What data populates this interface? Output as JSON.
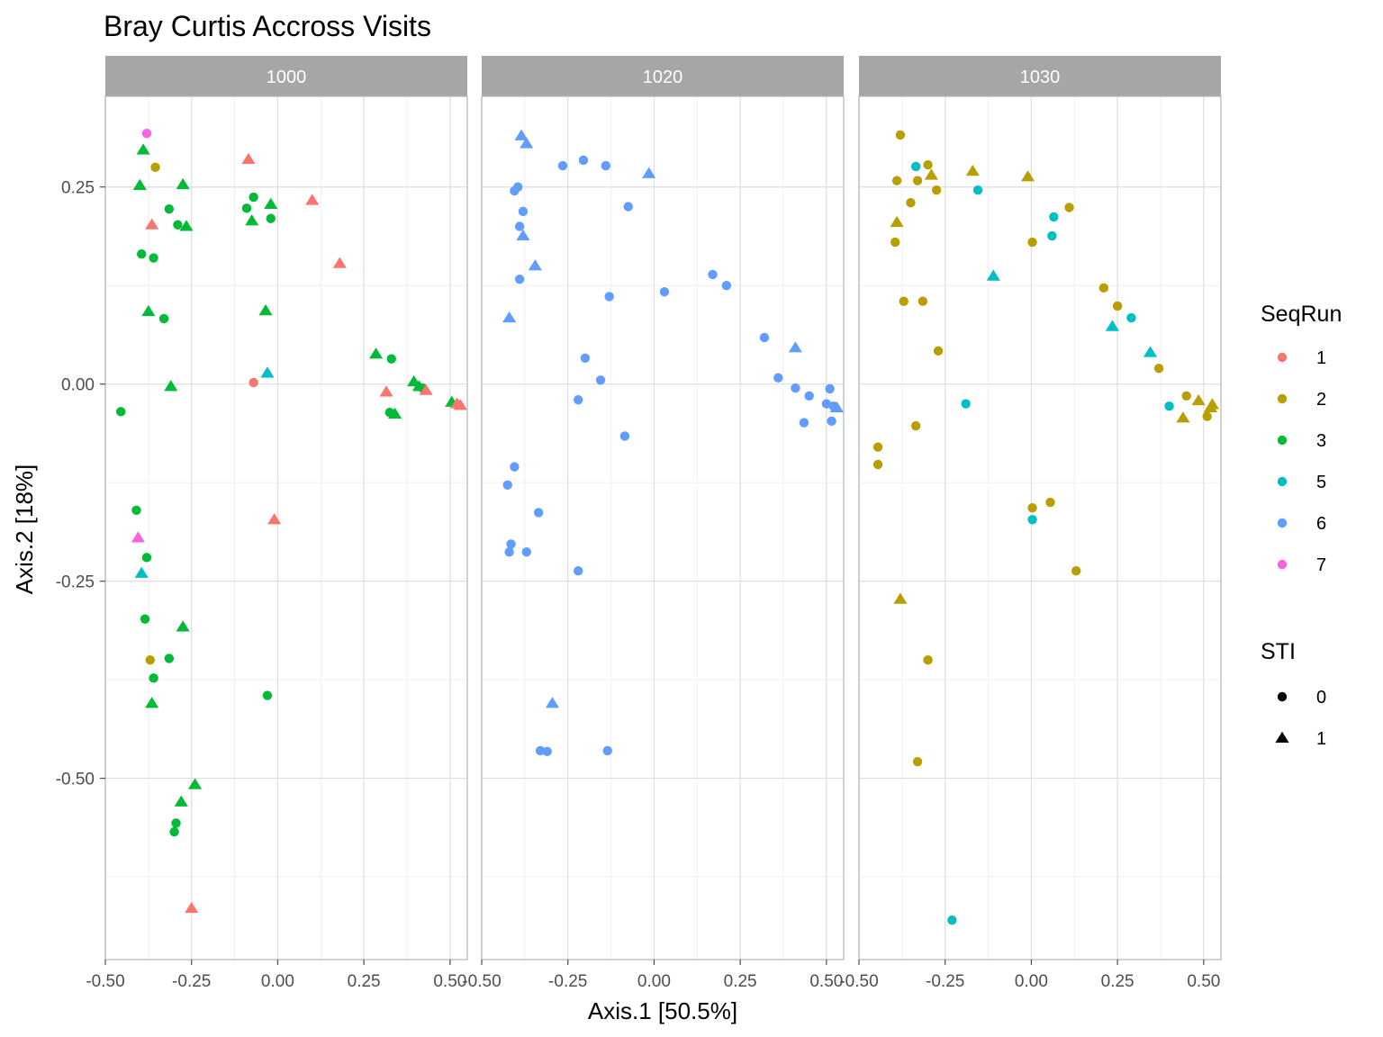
{
  "chart_data": {
    "type": "scatter",
    "title": "Bray Curtis Accross Visits",
    "xlabel": "Axis.1   [50.5%]",
    "ylabel": "Axis.2   [18%]",
    "xlim": [
      -0.5,
      0.55
    ],
    "ylim": [
      -0.73,
      0.365
    ],
    "xticks": [
      -0.5,
      -0.25,
      0.0,
      0.25,
      0.5
    ],
    "xtick_labels": [
      "-0.50",
      "-0.25",
      "0.00",
      "0.25",
      "0.50"
    ],
    "yticks": [
      0.25,
      0.0,
      -0.25,
      -0.5
    ],
    "ytick_labels": [
      "0.25",
      "0.00",
      "-0.25",
      "-0.50"
    ],
    "grid": true,
    "facets": [
      "1000",
      "1020",
      "1030"
    ],
    "legend": {
      "position": "right",
      "color": {
        "title": "SeqRun",
        "entries": [
          {
            "label": "1",
            "color": "#F8766D"
          },
          {
            "label": "2",
            "color": "#B79F00"
          },
          {
            "label": "3",
            "color": "#00BA38"
          },
          {
            "label": "5",
            "color": "#00BFC4"
          },
          {
            "label": "6",
            "color": "#619CFF"
          },
          {
            "label": "7",
            "color": "#F564E3"
          }
        ]
      },
      "shape": {
        "title": "STI",
        "entries": [
          {
            "label": "0",
            "shape": "circle"
          },
          {
            "label": "1",
            "shape": "triangle"
          }
        ]
      }
    },
    "points": [
      {
        "facet": "1000",
        "x": -0.38,
        "y": 0.318,
        "seqrun": "7",
        "sti": "0"
      },
      {
        "facet": "1000",
        "x": -0.39,
        "y": 0.297,
        "seqrun": "3",
        "sti": "1"
      },
      {
        "facet": "1000",
        "x": -0.355,
        "y": 0.275,
        "seqrun": "2",
        "sti": "0"
      },
      {
        "facet": "1000",
        "x": -0.4,
        "y": 0.252,
        "seqrun": "3",
        "sti": "1"
      },
      {
        "facet": "1000",
        "x": -0.275,
        "y": 0.253,
        "seqrun": "3",
        "sti": "1"
      },
      {
        "facet": "1000",
        "x": -0.315,
        "y": 0.222,
        "seqrun": "3",
        "sti": "0"
      },
      {
        "facet": "1000",
        "x": -0.365,
        "y": 0.202,
        "seqrun": "1",
        "sti": "1"
      },
      {
        "facet": "1000",
        "x": -0.29,
        "y": 0.202,
        "seqrun": "3",
        "sti": "0"
      },
      {
        "facet": "1000",
        "x": -0.265,
        "y": 0.2,
        "seqrun": "3",
        "sti": "1"
      },
      {
        "facet": "1000",
        "x": -0.395,
        "y": 0.165,
        "seqrun": "3",
        "sti": "0"
      },
      {
        "facet": "1000",
        "x": -0.36,
        "y": 0.16,
        "seqrun": "3",
        "sti": "0"
      },
      {
        "facet": "1000",
        "x": -0.375,
        "y": 0.092,
        "seqrun": "3",
        "sti": "1"
      },
      {
        "facet": "1000",
        "x": -0.33,
        "y": 0.083,
        "seqrun": "3",
        "sti": "0"
      },
      {
        "facet": "1000",
        "x": -0.31,
        "y": -0.003,
        "seqrun": "3",
        "sti": "1"
      },
      {
        "facet": "1000",
        "x": -0.455,
        "y": -0.035,
        "seqrun": "3",
        "sti": "0"
      },
      {
        "facet": "1000",
        "x": -0.085,
        "y": 0.285,
        "seqrun": "1",
        "sti": "1"
      },
      {
        "facet": "1000",
        "x": -0.07,
        "y": 0.237,
        "seqrun": "3",
        "sti": "0"
      },
      {
        "facet": "1000",
        "x": -0.09,
        "y": 0.223,
        "seqrun": "3",
        "sti": "0"
      },
      {
        "facet": "1000",
        "x": -0.02,
        "y": 0.228,
        "seqrun": "3",
        "sti": "1"
      },
      {
        "facet": "1000",
        "x": -0.075,
        "y": 0.207,
        "seqrun": "3",
        "sti": "1"
      },
      {
        "facet": "1000",
        "x": -0.02,
        "y": 0.21,
        "seqrun": "3",
        "sti": "0"
      },
      {
        "facet": "1000",
        "x": 0.1,
        "y": 0.233,
        "seqrun": "1",
        "sti": "1"
      },
      {
        "facet": "1000",
        "x": 0.18,
        "y": 0.153,
        "seqrun": "1",
        "sti": "1"
      },
      {
        "facet": "1000",
        "x": -0.035,
        "y": 0.093,
        "seqrun": "3",
        "sti": "1"
      },
      {
        "facet": "1000",
        "x": -0.03,
        "y": 0.014,
        "seqrun": "5",
        "sti": "1"
      },
      {
        "facet": "1000",
        "x": -0.07,
        "y": 0.002,
        "seqrun": "1",
        "sti": "0"
      },
      {
        "facet": "1000",
        "x": 0.285,
        "y": 0.038,
        "seqrun": "3",
        "sti": "1"
      },
      {
        "facet": "1000",
        "x": 0.33,
        "y": 0.032,
        "seqrun": "3",
        "sti": "0"
      },
      {
        "facet": "1000",
        "x": 0.315,
        "y": -0.01,
        "seqrun": "1",
        "sti": "1"
      },
      {
        "facet": "1000",
        "x": 0.395,
        "y": 0.003,
        "seqrun": "3",
        "sti": "1"
      },
      {
        "facet": "1000",
        "x": 0.41,
        "y": -0.003,
        "seqrun": "3",
        "sti": "1"
      },
      {
        "facet": "1000",
        "x": 0.42,
        "y": -0.005,
        "seqrun": "3",
        "sti": "0"
      },
      {
        "facet": "1000",
        "x": 0.43,
        "y": -0.008,
        "seqrun": "1",
        "sti": "1"
      },
      {
        "facet": "1000",
        "x": 0.325,
        "y": -0.036,
        "seqrun": "3",
        "sti": "0"
      },
      {
        "facet": "1000",
        "x": 0.34,
        "y": -0.038,
        "seqrun": "3",
        "sti": "1"
      },
      {
        "facet": "1000",
        "x": 0.505,
        "y": -0.023,
        "seqrun": "3",
        "sti": "1"
      },
      {
        "facet": "1000",
        "x": 0.52,
        "y": -0.025,
        "seqrun": "1",
        "sti": "1"
      },
      {
        "facet": "1000",
        "x": 0.53,
        "y": -0.027,
        "seqrun": "1",
        "sti": "1"
      },
      {
        "facet": "1000",
        "x": -0.41,
        "y": -0.16,
        "seqrun": "3",
        "sti": "0"
      },
      {
        "facet": "1000",
        "x": -0.01,
        "y": -0.172,
        "seqrun": "1",
        "sti": "1"
      },
      {
        "facet": "1000",
        "x": -0.405,
        "y": -0.195,
        "seqrun": "7",
        "sti": "1"
      },
      {
        "facet": "1000",
        "x": -0.38,
        "y": -0.22,
        "seqrun": "3",
        "sti": "0"
      },
      {
        "facet": "1000",
        "x": -0.395,
        "y": -0.24,
        "seqrun": "5",
        "sti": "1"
      },
      {
        "facet": "1000",
        "x": -0.385,
        "y": -0.298,
        "seqrun": "3",
        "sti": "0"
      },
      {
        "facet": "1000",
        "x": -0.275,
        "y": -0.308,
        "seqrun": "3",
        "sti": "1"
      },
      {
        "facet": "1000",
        "x": -0.37,
        "y": -0.35,
        "seqrun": "2",
        "sti": "0"
      },
      {
        "facet": "1000",
        "x": -0.315,
        "y": -0.348,
        "seqrun": "3",
        "sti": "0"
      },
      {
        "facet": "1000",
        "x": -0.36,
        "y": -0.373,
        "seqrun": "3",
        "sti": "0"
      },
      {
        "facet": "1000",
        "x": -0.365,
        "y": -0.405,
        "seqrun": "3",
        "sti": "1"
      },
      {
        "facet": "1000",
        "x": -0.03,
        "y": -0.395,
        "seqrun": "3",
        "sti": "0"
      },
      {
        "facet": "1000",
        "x": -0.24,
        "y": -0.508,
        "seqrun": "3",
        "sti": "1"
      },
      {
        "facet": "1000",
        "x": -0.28,
        "y": -0.53,
        "seqrun": "3",
        "sti": "1"
      },
      {
        "facet": "1000",
        "x": -0.295,
        "y": -0.557,
        "seqrun": "3",
        "sti": "0"
      },
      {
        "facet": "1000",
        "x": -0.3,
        "y": -0.568,
        "seqrun": "3",
        "sti": "0"
      },
      {
        "facet": "1000",
        "x": -0.25,
        "y": -0.665,
        "seqrun": "1",
        "sti": "1"
      },
      {
        "facet": "1020",
        "x": -0.385,
        "y": 0.315,
        "seqrun": "6",
        "sti": "1"
      },
      {
        "facet": "1020",
        "x": -0.37,
        "y": 0.305,
        "seqrun": "6",
        "sti": "1"
      },
      {
        "facet": "1020",
        "x": -0.265,
        "y": 0.277,
        "seqrun": "6",
        "sti": "0"
      },
      {
        "facet": "1020",
        "x": -0.205,
        "y": 0.284,
        "seqrun": "6",
        "sti": "0"
      },
      {
        "facet": "1020",
        "x": -0.14,
        "y": 0.277,
        "seqrun": "6",
        "sti": "0"
      },
      {
        "facet": "1020",
        "x": -0.015,
        "y": 0.267,
        "seqrun": "6",
        "sti": "1"
      },
      {
        "facet": "1020",
        "x": -0.395,
        "y": 0.25,
        "seqrun": "6",
        "sti": "0"
      },
      {
        "facet": "1020",
        "x": -0.405,
        "y": 0.245,
        "seqrun": "6",
        "sti": "0"
      },
      {
        "facet": "1020",
        "x": -0.075,
        "y": 0.225,
        "seqrun": "6",
        "sti": "0"
      },
      {
        "facet": "1020",
        "x": -0.38,
        "y": 0.219,
        "seqrun": "6",
        "sti": "0"
      },
      {
        "facet": "1020",
        "x": -0.39,
        "y": 0.2,
        "seqrun": "6",
        "sti": "0"
      },
      {
        "facet": "1020",
        "x": -0.38,
        "y": 0.188,
        "seqrun": "6",
        "sti": "1"
      },
      {
        "facet": "1020",
        "x": -0.345,
        "y": 0.15,
        "seqrun": "6",
        "sti": "1"
      },
      {
        "facet": "1020",
        "x": -0.39,
        "y": 0.133,
        "seqrun": "6",
        "sti": "0"
      },
      {
        "facet": "1020",
        "x": 0.17,
        "y": 0.139,
        "seqrun": "6",
        "sti": "0"
      },
      {
        "facet": "1020",
        "x": 0.21,
        "y": 0.125,
        "seqrun": "6",
        "sti": "0"
      },
      {
        "facet": "1020",
        "x": 0.03,
        "y": 0.117,
        "seqrun": "6",
        "sti": "0"
      },
      {
        "facet": "1020",
        "x": -0.13,
        "y": 0.111,
        "seqrun": "6",
        "sti": "0"
      },
      {
        "facet": "1020",
        "x": -0.42,
        "y": 0.084,
        "seqrun": "6",
        "sti": "1"
      },
      {
        "facet": "1020",
        "x": 0.32,
        "y": 0.059,
        "seqrun": "6",
        "sti": "0"
      },
      {
        "facet": "1020",
        "x": 0.41,
        "y": 0.046,
        "seqrun": "6",
        "sti": "1"
      },
      {
        "facet": "1020",
        "x": -0.2,
        "y": 0.033,
        "seqrun": "6",
        "sti": "0"
      },
      {
        "facet": "1020",
        "x": 0.36,
        "y": 0.008,
        "seqrun": "6",
        "sti": "0"
      },
      {
        "facet": "1020",
        "x": -0.155,
        "y": 0.005,
        "seqrun": "6",
        "sti": "0"
      },
      {
        "facet": "1020",
        "x": 0.41,
        "y": -0.005,
        "seqrun": "6",
        "sti": "0"
      },
      {
        "facet": "1020",
        "x": 0.51,
        "y": -0.006,
        "seqrun": "6",
        "sti": "0"
      },
      {
        "facet": "1020",
        "x": 0.45,
        "y": -0.015,
        "seqrun": "6",
        "sti": "0"
      },
      {
        "facet": "1020",
        "x": -0.22,
        "y": -0.02,
        "seqrun": "6",
        "sti": "0"
      },
      {
        "facet": "1020",
        "x": 0.5,
        "y": -0.025,
        "seqrun": "6",
        "sti": "0"
      },
      {
        "facet": "1020",
        "x": 0.52,
        "y": -0.028,
        "seqrun": "6",
        "sti": "0"
      },
      {
        "facet": "1020",
        "x": 0.53,
        "y": -0.03,
        "seqrun": "6",
        "sti": "1"
      },
      {
        "facet": "1020",
        "x": 0.435,
        "y": -0.049,
        "seqrun": "6",
        "sti": "0"
      },
      {
        "facet": "1020",
        "x": 0.515,
        "y": -0.047,
        "seqrun": "6",
        "sti": "0"
      },
      {
        "facet": "1020",
        "x": -0.085,
        "y": -0.066,
        "seqrun": "6",
        "sti": "0"
      },
      {
        "facet": "1020",
        "x": -0.405,
        "y": -0.105,
        "seqrun": "6",
        "sti": "0"
      },
      {
        "facet": "1020",
        "x": -0.425,
        "y": -0.128,
        "seqrun": "6",
        "sti": "0"
      },
      {
        "facet": "1020",
        "x": -0.335,
        "y": -0.163,
        "seqrun": "6",
        "sti": "0"
      },
      {
        "facet": "1020",
        "x": -0.415,
        "y": -0.203,
        "seqrun": "6",
        "sti": "0"
      },
      {
        "facet": "1020",
        "x": -0.42,
        "y": -0.213,
        "seqrun": "6",
        "sti": "0"
      },
      {
        "facet": "1020",
        "x": -0.37,
        "y": -0.213,
        "seqrun": "6",
        "sti": "0"
      },
      {
        "facet": "1020",
        "x": -0.22,
        "y": -0.237,
        "seqrun": "6",
        "sti": "0"
      },
      {
        "facet": "1020",
        "x": -0.295,
        "y": -0.405,
        "seqrun": "6",
        "sti": "1"
      },
      {
        "facet": "1020",
        "x": -0.33,
        "y": -0.465,
        "seqrun": "6",
        "sti": "0"
      },
      {
        "facet": "1020",
        "x": -0.31,
        "y": -0.466,
        "seqrun": "6",
        "sti": "0"
      },
      {
        "facet": "1020",
        "x": -0.135,
        "y": -0.465,
        "seqrun": "6",
        "sti": "0"
      },
      {
        "facet": "1030",
        "x": -0.38,
        "y": 0.316,
        "seqrun": "2",
        "sti": "0"
      },
      {
        "facet": "1030",
        "x": -0.335,
        "y": 0.276,
        "seqrun": "5",
        "sti": "0"
      },
      {
        "facet": "1030",
        "x": -0.3,
        "y": 0.278,
        "seqrun": "2",
        "sti": "0"
      },
      {
        "facet": "1030",
        "x": -0.17,
        "y": 0.27,
        "seqrun": "2",
        "sti": "1"
      },
      {
        "facet": "1030",
        "x": -0.29,
        "y": 0.265,
        "seqrun": "2",
        "sti": "1"
      },
      {
        "facet": "1030",
        "x": -0.01,
        "y": 0.263,
        "seqrun": "2",
        "sti": "1"
      },
      {
        "facet": "1030",
        "x": -0.39,
        "y": 0.258,
        "seqrun": "2",
        "sti": "0"
      },
      {
        "facet": "1030",
        "x": -0.33,
        "y": 0.258,
        "seqrun": "2",
        "sti": "0"
      },
      {
        "facet": "1030",
        "x": -0.275,
        "y": 0.246,
        "seqrun": "2",
        "sti": "0"
      },
      {
        "facet": "1030",
        "x": -0.155,
        "y": 0.246,
        "seqrun": "5",
        "sti": "0"
      },
      {
        "facet": "1030",
        "x": -0.35,
        "y": 0.23,
        "seqrun": "2",
        "sti": "0"
      },
      {
        "facet": "1030",
        "x": 0.11,
        "y": 0.224,
        "seqrun": "2",
        "sti": "0"
      },
      {
        "facet": "1030",
        "x": 0.065,
        "y": 0.212,
        "seqrun": "5",
        "sti": "0"
      },
      {
        "facet": "1030",
        "x": -0.39,
        "y": 0.205,
        "seqrun": "2",
        "sti": "1"
      },
      {
        "facet": "1030",
        "x": 0.06,
        "y": 0.188,
        "seqrun": "5",
        "sti": "0"
      },
      {
        "facet": "1030",
        "x": -0.395,
        "y": 0.18,
        "seqrun": "2",
        "sti": "0"
      },
      {
        "facet": "1030",
        "x": 0.003,
        "y": 0.18,
        "seqrun": "2",
        "sti": "0"
      },
      {
        "facet": "1030",
        "x": -0.11,
        "y": 0.137,
        "seqrun": "5",
        "sti": "1"
      },
      {
        "facet": "1030",
        "x": 0.21,
        "y": 0.122,
        "seqrun": "2",
        "sti": "0"
      },
      {
        "facet": "1030",
        "x": -0.37,
        "y": 0.105,
        "seqrun": "2",
        "sti": "0"
      },
      {
        "facet": "1030",
        "x": -0.315,
        "y": 0.105,
        "seqrun": "2",
        "sti": "0"
      },
      {
        "facet": "1030",
        "x": 0.25,
        "y": 0.099,
        "seqrun": "2",
        "sti": "0"
      },
      {
        "facet": "1030",
        "x": 0.29,
        "y": 0.084,
        "seqrun": "5",
        "sti": "0"
      },
      {
        "facet": "1030",
        "x": 0.235,
        "y": 0.073,
        "seqrun": "5",
        "sti": "1"
      },
      {
        "facet": "1030",
        "x": -0.27,
        "y": 0.042,
        "seqrun": "2",
        "sti": "0"
      },
      {
        "facet": "1030",
        "x": 0.345,
        "y": 0.04,
        "seqrun": "5",
        "sti": "1"
      },
      {
        "facet": "1030",
        "x": 0.37,
        "y": 0.02,
        "seqrun": "2",
        "sti": "0"
      },
      {
        "facet": "1030",
        "x": 0.45,
        "y": -0.015,
        "seqrun": "2",
        "sti": "0"
      },
      {
        "facet": "1030",
        "x": 0.485,
        "y": -0.021,
        "seqrun": "2",
        "sti": "1"
      },
      {
        "facet": "1030",
        "x": -0.19,
        "y": -0.025,
        "seqrun": "5",
        "sti": "0"
      },
      {
        "facet": "1030",
        "x": 0.4,
        "y": -0.028,
        "seqrun": "5",
        "sti": "0"
      },
      {
        "facet": "1030",
        "x": 0.525,
        "y": -0.026,
        "seqrun": "2",
        "sti": "1"
      },
      {
        "facet": "1030",
        "x": 0.52,
        "y": -0.03,
        "seqrun": "2",
        "sti": "1"
      },
      {
        "facet": "1030",
        "x": 0.44,
        "y": -0.043,
        "seqrun": "2",
        "sti": "1"
      },
      {
        "facet": "1030",
        "x": 0.51,
        "y": -0.041,
        "seqrun": "2",
        "sti": "0"
      },
      {
        "facet": "1030",
        "x": -0.335,
        "y": -0.053,
        "seqrun": "2",
        "sti": "0"
      },
      {
        "facet": "1030",
        "x": -0.445,
        "y": -0.08,
        "seqrun": "2",
        "sti": "0"
      },
      {
        "facet": "1030",
        "x": -0.445,
        "y": -0.102,
        "seqrun": "2",
        "sti": "0"
      },
      {
        "facet": "1030",
        "x": 0.055,
        "y": -0.15,
        "seqrun": "2",
        "sti": "0"
      },
      {
        "facet": "1030",
        "x": 0.003,
        "y": -0.157,
        "seqrun": "2",
        "sti": "0"
      },
      {
        "facet": "1030",
        "x": 0.003,
        "y": -0.172,
        "seqrun": "5",
        "sti": "0"
      },
      {
        "facet": "1030",
        "x": 0.13,
        "y": -0.237,
        "seqrun": "2",
        "sti": "0"
      },
      {
        "facet": "1030",
        "x": -0.38,
        "y": -0.273,
        "seqrun": "2",
        "sti": "1"
      },
      {
        "facet": "1030",
        "x": -0.3,
        "y": -0.35,
        "seqrun": "2",
        "sti": "0"
      },
      {
        "facet": "1030",
        "x": -0.33,
        "y": -0.479,
        "seqrun": "2",
        "sti": "0"
      },
      {
        "facet": "1030",
        "x": -0.23,
        "y": -0.68,
        "seqrun": "5",
        "sti": "0"
      }
    ]
  }
}
